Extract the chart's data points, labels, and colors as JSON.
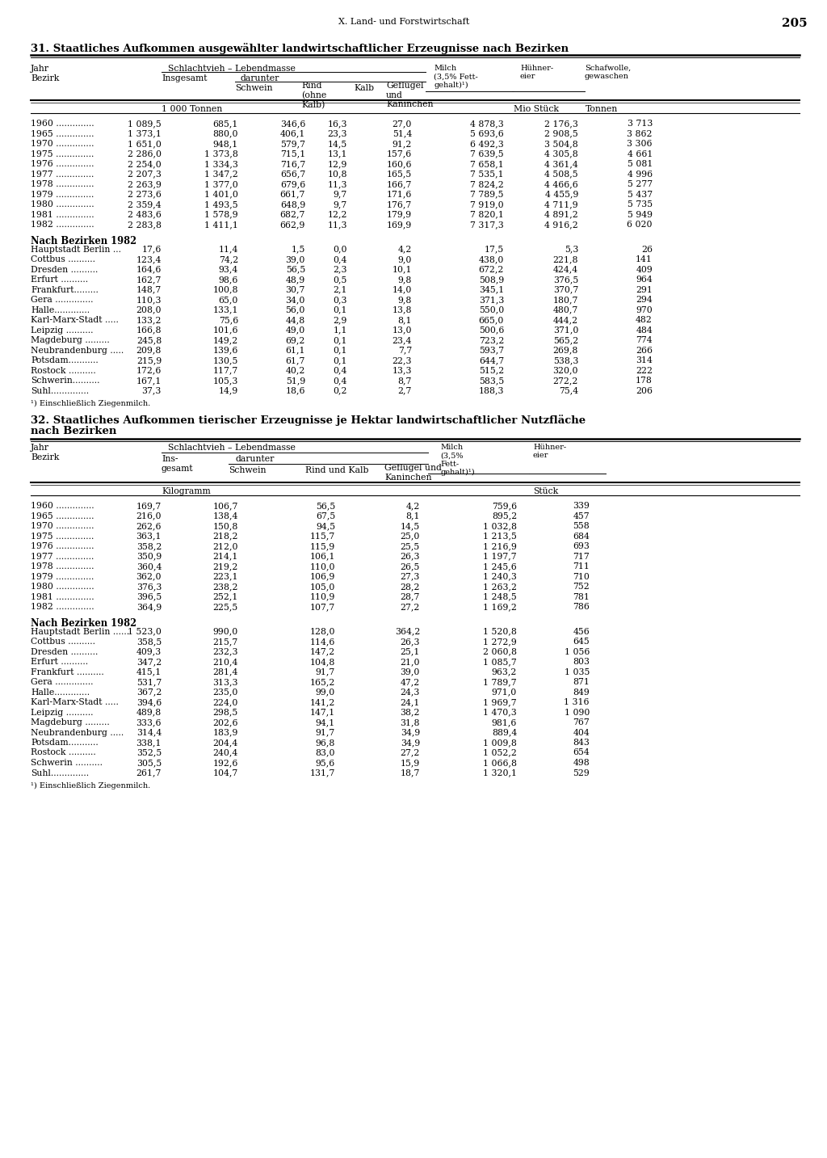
{
  "page_header": "X. Land- und Forstwirtschaft",
  "page_number": "205",
  "table1_title": "31. Staatliches Aufkommen ausgewählter landwirtschaftlicher Erzeugnisse nach Bezirken",
  "table1_years_data": [
    [
      "1960",
      "1 089,5",
      "685,1",
      "346,6",
      "16,3",
      "27,0",
      "4 878,3",
      "2 176,3",
      "3 713"
    ],
    [
      "1965",
      "1 373,1",
      "880,0",
      "406,1",
      "23,3",
      "51,4",
      "5 693,6",
      "2 908,5",
      "3 862"
    ],
    [
      "1970",
      "1 651,0",
      "948,1",
      "579,7",
      "14,5",
      "91,2",
      "6 492,3",
      "3 504,8",
      "3 306"
    ],
    [
      "1975",
      "2 286,0",
      "1 373,8",
      "715,1",
      "13,1",
      "157,6",
      "7 639,5",
      "4 305,8",
      "4 661"
    ],
    [
      "1976",
      "2 254,0",
      "1 334,3",
      "716,7",
      "12,9",
      "160,6",
      "7 658,1",
      "4 361,4",
      "5 081"
    ],
    [
      "1977",
      "2 207,3",
      "1 347,2",
      "656,7",
      "10,8",
      "165,5",
      "7 535,1",
      "4 508,5",
      "4 996"
    ],
    [
      "1978",
      "2 263,9",
      "1 377,0",
      "679,6",
      "11,3",
      "166,7",
      "7 824,2",
      "4 466,6",
      "5 277"
    ],
    [
      "1979",
      "2 273,6",
      "1 401,0",
      "661,7",
      "9,7",
      "171,6",
      "7 789,5",
      "4 455,9",
      "5 437"
    ],
    [
      "1980",
      "2 359,4",
      "1 493,5",
      "648,9",
      "9,7",
      "176,7",
      "7 919,0",
      "4 711,9",
      "5 735"
    ],
    [
      "1981",
      "2 483,6",
      "1 578,9",
      "682,7",
      "12,2",
      "179,9",
      "7 820,1",
      "4 891,2",
      "5 949"
    ],
    [
      "1982",
      "2 283,8",
      "1 411,1",
      "662,9",
      "11,3",
      "169,9",
      "7 317,3",
      "4 916,2",
      "6 020"
    ]
  ],
  "table1_bezirke_data": [
    [
      "Hauptstadt Berlin ...",
      "17,6",
      "11,4",
      "1,5",
      "0,0",
      "4,2",
      "17,5",
      "5,3",
      "26"
    ],
    [
      "Cottbus ..........",
      "123,4",
      "74,2",
      "39,0",
      "0,4",
      "9,0",
      "438,0",
      "221,8",
      "141"
    ],
    [
      "Dresden ..........",
      "164,6",
      "93,4",
      "56,5",
      "2,3",
      "10,1",
      "672,2",
      "424,4",
      "409"
    ],
    [
      "Erfurt ..........",
      "162,7",
      "98,6",
      "48,9",
      "0,5",
      "9,8",
      "508,9",
      "376,5",
      "964"
    ],
    [
      "Frankfurt.........",
      "148,7",
      "100,8",
      "30,7",
      "2,1",
      "14,0",
      "345,1",
      "370,7",
      "291"
    ],
    [
      "Gera ..............",
      "110,3",
      "65,0",
      "34,0",
      "0,3",
      "9,8",
      "371,3",
      "180,7",
      "294"
    ],
    [
      "Halle.............",
      "208,0",
      "133,1",
      "56,0",
      "0,1",
      "13,8",
      "550,0",
      "480,7",
      "970"
    ],
    [
      "Karl-Marx-Stadt .....",
      "133,2",
      "75,6",
      "44,8",
      "2,9",
      "8,1",
      "665,0",
      "444,2",
      "482"
    ],
    [
      "Leipzig ..........",
      "166,8",
      "101,6",
      "49,0",
      "1,1",
      "13,0",
      "500,6",
      "371,0",
      "484"
    ],
    [
      "Magdeburg .........",
      "245,8",
      "149,2",
      "69,2",
      "0,1",
      "23,4",
      "723,2",
      "565,2",
      "774"
    ],
    [
      "Neubrandenburg .....",
      "209,8",
      "139,6",
      "61,1",
      "0,1",
      "7,7",
      "593,7",
      "269,8",
      "266"
    ],
    [
      "Potsdam...........",
      "215,9",
      "130,5",
      "61,7",
      "0,1",
      "22,3",
      "644,7",
      "538,3",
      "314"
    ],
    [
      "Rostock ..........",
      "172,6",
      "117,7",
      "40,2",
      "0,4",
      "13,3",
      "515,2",
      "320,0",
      "222"
    ],
    [
      "Schwerin..........",
      "167,1",
      "105,3",
      "51,9",
      "0,4",
      "8,7",
      "583,5",
      "272,2",
      "178"
    ],
    [
      "Suhl..............",
      "37,3",
      "14,9",
      "18,6",
      "0,2",
      "2,7",
      "188,3",
      "75,4",
      "206"
    ]
  ],
  "table1_footnote": "¹) Einschließlich Ziegenmilch.",
  "table2_title_line1": "32. Staatliches Aufkommen tierischer Erzeugnisse je Hektar landwirtschaftlicher Nutzfläche",
  "table2_title_line2": "nach Bezirken",
  "table2_years_data": [
    [
      "1960",
      "169,7",
      "106,7",
      "56,5",
      "4,2",
      "759,6",
      "339"
    ],
    [
      "1965",
      "216,0",
      "138,4",
      "67,5",
      "8,1",
      "895,2",
      "457"
    ],
    [
      "1970",
      "262,6",
      "150,8",
      "94,5",
      "14,5",
      "1 032,8",
      "558"
    ],
    [
      "1975",
      "363,1",
      "218,2",
      "115,7",
      "25,0",
      "1 213,5",
      "684"
    ],
    [
      "1976",
      "358,2",
      "212,0",
      "115,9",
      "25,5",
      "1 216,9",
      "693"
    ],
    [
      "1977",
      "350,9",
      "214,1",
      "106,1",
      "26,3",
      "1 197,7",
      "717"
    ],
    [
      "1978",
      "360,4",
      "219,2",
      "110,0",
      "26,5",
      "1 245,6",
      "711"
    ],
    [
      "1979",
      "362,0",
      "223,1",
      "106,9",
      "27,3",
      "1 240,3",
      "710"
    ],
    [
      "1980",
      "376,3",
      "238,2",
      "105,0",
      "28,2",
      "1 263,2",
      "752"
    ],
    [
      "1981",
      "396,5",
      "252,1",
      "110,9",
      "28,7",
      "1 248,5",
      "781"
    ],
    [
      "1982",
      "364,9",
      "225,5",
      "107,7",
      "27,2",
      "1 169,2",
      "786"
    ]
  ],
  "table2_bezirke_data": [
    [
      "Hauptstadt Berlin ......",
      "1 523,0",
      "990,0",
      "128,0",
      "364,2",
      "1 520,8",
      "456"
    ],
    [
      "Cottbus ..........",
      "358,5",
      "215,7",
      "114,6",
      "26,3",
      "1 272,9",
      "645"
    ],
    [
      "Dresden ..........",
      "409,3",
      "232,3",
      "147,2",
      "25,1",
      "2 060,8",
      "1 056"
    ],
    [
      "Erfurt ..........",
      "347,2",
      "210,4",
      "104,8",
      "21,0",
      "1 085,7",
      "803"
    ],
    [
      "Frankfurt ..........",
      "415,1",
      "281,4",
      "91,7",
      "39,0",
      "963,2",
      "1 035"
    ],
    [
      "Gera ..............",
      "531,7",
      "313,3",
      "165,2",
      "47,2",
      "1 789,7",
      "871"
    ],
    [
      "Halle.............",
      "367,2",
      "235,0",
      "99,0",
      "24,3",
      "971,0",
      "849"
    ],
    [
      "Karl-Marx-Stadt .....",
      "394,6",
      "224,0",
      "141,2",
      "24,1",
      "1 969,7",
      "1 316"
    ],
    [
      "Leipzig ..........",
      "489,8",
      "298,5",
      "147,1",
      "38,2",
      "1 470,3",
      "1 090"
    ],
    [
      "Magdeburg .........",
      "333,6",
      "202,6",
      "94,1",
      "31,8",
      "981,6",
      "767"
    ],
    [
      "Neubrandenburg .....",
      "314,4",
      "183,9",
      "91,7",
      "34,9",
      "889,4",
      "404"
    ],
    [
      "Potsdam...........",
      "338,1",
      "204,4",
      "96,8",
      "34,9",
      "1 009,8",
      "843"
    ],
    [
      "Rostock ..........",
      "352,5",
      "240,4",
      "83,0",
      "27,2",
      "1 052,2",
      "654"
    ],
    [
      "Schwerin ..........",
      "305,5",
      "192,6",
      "95,6",
      "15,9",
      "1 066,8",
      "498"
    ],
    [
      "Suhl..............",
      "261,7",
      "104,7",
      "131,7",
      "18,7",
      "1 320,1",
      "529"
    ]
  ],
  "table2_footnote": "¹) Einschließlich Ziegenmilch."
}
